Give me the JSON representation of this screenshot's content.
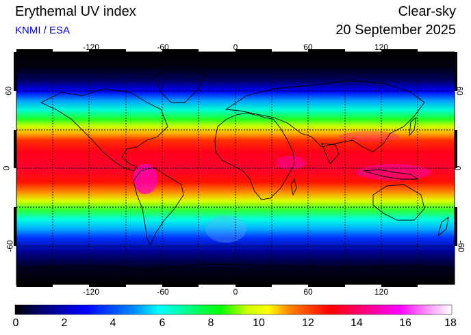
{
  "header": {
    "title": "Erythemal UV index",
    "source": "KNMI / ESA",
    "condition": "Clear-sky",
    "date": "20 September 2025"
  },
  "map": {
    "projection": "equirectangular",
    "lon_ticks": [
      "-120",
      "-60",
      "0",
      "60",
      "120"
    ],
    "lat_ticks": [
      "60",
      "0",
      "-60"
    ],
    "grid": "dashed 30 degree lines",
    "ocean_color": "#000000",
    "coastline_color": "#000000"
  },
  "colorbar": {
    "labels": [
      "0",
      "2",
      "4",
      "6",
      "8",
      "10",
      "12",
      "14",
      "16",
      "18"
    ],
    "min": 0,
    "max": 18,
    "colors": [
      "#000000",
      "#000070",
      "#0000ff",
      "#0088ff",
      "#00ffff",
      "#00ff80",
      "#00ff00",
      "#ccff00",
      "#ffff00",
      "#ff8000",
      "#ff0000",
      "#ff0080",
      "#ff00ff",
      "#ffa0ff",
      "#ffffff"
    ]
  }
}
